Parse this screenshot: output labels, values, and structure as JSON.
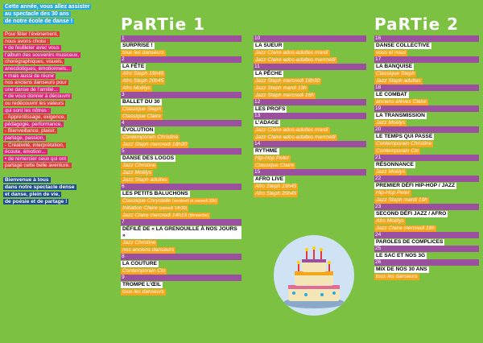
{
  "left": {
    "intro": [
      "Cette année, vous allez assister",
      "au spectacle des 30 ans",
      "de notre école de danse !"
    ],
    "body": [
      {
        "t": "Pour fêter l’évènement,",
        "c": "red"
      },
      {
        "t": "nous avons choisi :",
        "c": "red"
      },
      {
        "t": "• de feuilleter avec vous",
        "c": "pink"
      },
      {
        "t": "l’album des souvenirs musicaux,",
        "c": "pink"
      },
      {
        "t": "chorégraphiques, visuels,",
        "c": "red"
      },
      {
        "t": "anecdotiques, émotionnels...",
        "c": "pink"
      },
      {
        "t": "• mais aussi de réunir",
        "c": "pink"
      },
      {
        "t": "nos anciens danseurs pour",
        "c": "red"
      },
      {
        "t": "une danse de l’amitié...",
        "c": "pink"
      },
      {
        "t": "• de vous donner à découvrir",
        "c": "pink"
      },
      {
        "t": "ou redécouvrir les valeurs",
        "c": "red"
      },
      {
        "t": "qui sont les nôtres :",
        "c": "pink"
      },
      {
        "t": "- Apprentissage, exigence,",
        "c": "red"
      },
      {
        "t": "pédagogie, performance,",
        "c": "pink"
      },
      {
        "t": "- Bienveillance, plaisir,",
        "c": "red"
      },
      {
        "t": "partage, passion,",
        "c": "pink"
      },
      {
        "t": "- Créativité, interprétation,",
        "c": "red"
      },
      {
        "t": "écoute, émotion...",
        "c": "pink"
      },
      {
        "t": "• de remercier ceux qui ont",
        "c": "pink"
      },
      {
        "t": "partagé cette belle aventure.",
        "c": "red"
      }
    ],
    "outro": [
      "Bienvenue à tous",
      "dans notre spectacle dense",
      "et danse, plein de vie,",
      "de poésie et de partage !"
    ]
  },
  "partie1_title": "PaRTie 1",
  "partie2_title": "PaRTie 2",
  "col1": [
    {
      "n": "1",
      "t": "SURPRISE !",
      "s": [
        "tous les danseurs"
      ]
    },
    {
      "n": "2",
      "t": "LA FÊTE",
      "s": [
        "Afro Steph 19h45",
        "Afro Steph 20h45",
        "Afro Moëlys"
      ]
    },
    {
      "n": "3",
      "t": "BALLET DU 30",
      "s": [
        "Classique Steph",
        "Classique Claire"
      ]
    },
    {
      "n": "4",
      "t": "ÉVOLUTION",
      "s": [
        "Contemporain Christine",
        "Jazz Steph mercredi 18h30"
      ]
    },
    {
      "n": "5",
      "t": "DANSE DES LOGOS",
      "s": [
        "Jazz Christine",
        "Jazz Moëlys",
        "Jazz Steph adultes"
      ]
    },
    {
      "n": "6",
      "t": "LES PETITS BALUCHONS",
      "s": [
        "Classique Chrystelle (vendredi et samedi 20h)",
        "Initiation Claire (samedi 14h30)",
        "Jazz Claire mercredi 14h15 (dimanche)"
      ]
    },
    {
      "n": "7",
      "t": "DÉFILÉ DE « LA GRENOUILLE À NOS JOURS »",
      "s": [
        "Jazz Christine",
        "nos anciens danseurs"
      ]
    },
    {
      "n": "8",
      "t": "LA COUTURE",
      "s": [
        "Contemporain Clo"
      ]
    },
    {
      "n": "9",
      "t": "TROMPE L’ŒIL",
      "s": [
        "tous les danseurs"
      ]
    }
  ],
  "col2": [
    {
      "n": "10",
      "t": "LA SUEUR",
      "s": [
        "Jazz Claire ados-adultes mardi",
        "Jazz Claire ados-adultes mercredi"
      ]
    },
    {
      "n": "11",
      "t": "LA PÊCHE",
      "s": [
        "Jazz Steph mercredi 18h30",
        "Jazz Steph mardi 19h",
        "Jazz Steph mercredi 16h"
      ]
    },
    {
      "n": "12",
      "t": "LES PROFS",
      "s": []
    },
    {
      "n": "13",
      "t": "L’ADAGE",
      "s": [
        "Jazz Claire ados-adultes mardi",
        "Jazz Claire ados-adultes mercredi"
      ]
    },
    {
      "n": "14",
      "t": "RYTHME",
      "s": [
        "Hip-Hop Peter",
        "Classique Claire"
      ]
    },
    {
      "n": "15",
      "t": "AFRO LIVE",
      "s": [
        "Afro Steph 19h45",
        "Afro Steph 20h45"
      ]
    }
  ],
  "col3": [
    {
      "n": "16",
      "t": "DANSE COLLECTIVE",
      "s": [
        "vous et nous"
      ]
    },
    {
      "n": "17",
      "t": "LA BANQUISE",
      "s": [
        "Classique Steph",
        "Jazz Steph adultes"
      ]
    },
    {
      "n": "18",
      "t": "LE COMBAT",
      "s": [
        "anciens élèves Claire"
      ]
    },
    {
      "n": "19",
      "t": "LA TRANSMISSION",
      "s": [
        "Jazz Moëlys"
      ]
    },
    {
      "n": "20",
      "t": "LE TEMPS QUI PASSE",
      "s": [
        "Contemporain Christine",
        "Contemporain Clo"
      ]
    },
    {
      "n": "21",
      "t": "RÉSONNANCE",
      "s": [
        "Jazz Moëlys"
      ]
    },
    {
      "n": "22",
      "t": "PREMIER DÉFI HIP-HOP / JAZZ",
      "s": [
        "Hip-Hop Peter",
        "Jazz Steph mardi 19h"
      ]
    },
    {
      "n": "23",
      "t": "SECOND DÉFI JAZZ / AFRO",
      "s": [
        "Afro Moëlys",
        "Jazz Claire mercredi 16h"
      ]
    },
    {
      "n": "24",
      "t": "PAROLES DE COMPLICES",
      "s": []
    },
    {
      "n": "25",
      "t": "LE SAC ET NOS 3G",
      "s": []
    },
    {
      "n": "26",
      "t": "MIX DE NOS 30 ANS",
      "s": [
        "tous les danseurs"
      ]
    }
  ],
  "colors": {
    "background": "#7cc142",
    "number_bar": "#9b4f9f",
    "performer_highlight": "#f7a51b",
    "intro_highlight": "#27a9e1",
    "pink": "#e0247b",
    "red": "#e03a3a",
    "outro_highlight": "#1d4e8f"
  },
  "illustration": "birthday-cake"
}
